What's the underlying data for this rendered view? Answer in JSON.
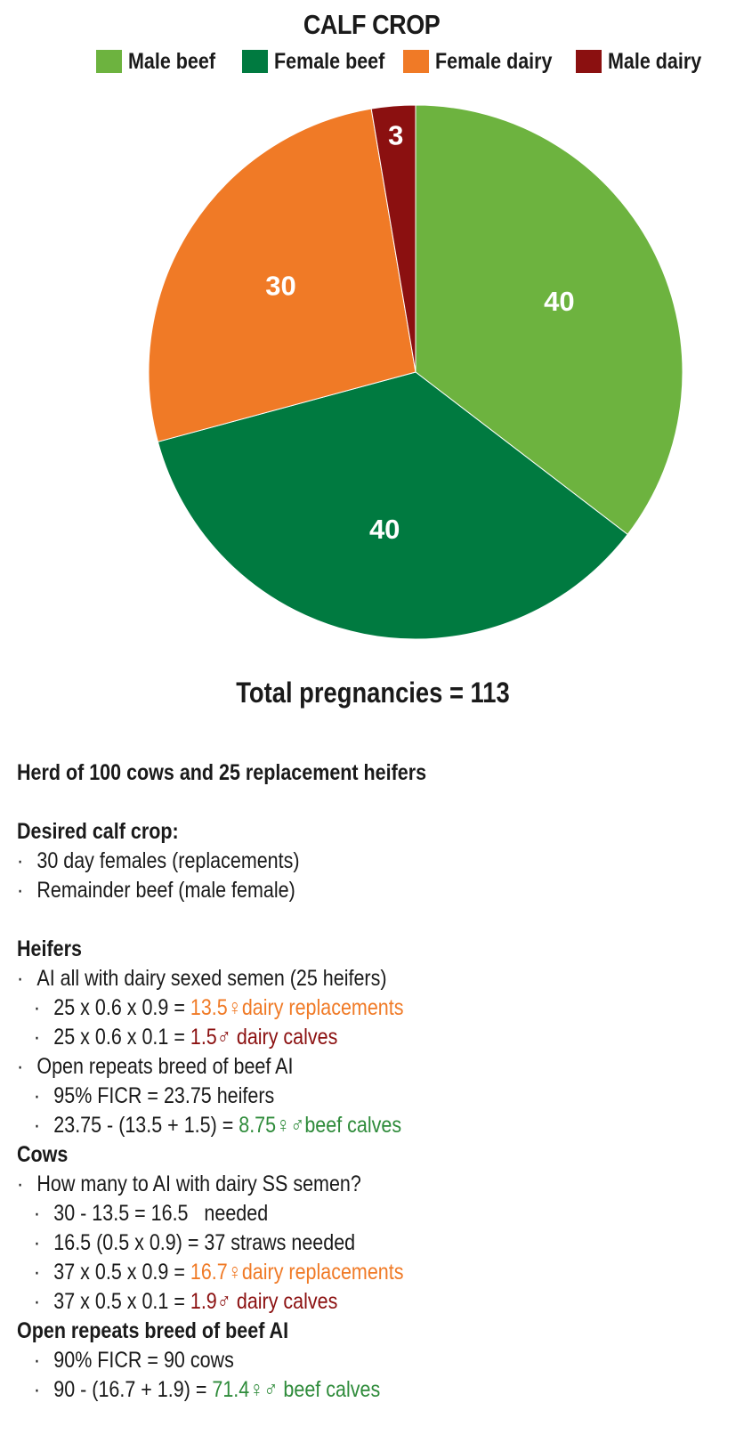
{
  "chart_data": {
    "type": "pie",
    "title": "CALF CROP",
    "series": [
      {
        "name": "Male beef",
        "value": 40,
        "color": "#6db33f"
      },
      {
        "name": "Female beef",
        "value": 40,
        "color": "#007a40"
      },
      {
        "name": "Female dairy",
        "value": 30,
        "color": "#f07a26"
      },
      {
        "name": "Male dairy",
        "value": 3,
        "color": "#8b1010"
      }
    ],
    "legend_position": "top",
    "caption": "Total pregnancies = 113"
  },
  "notes": {
    "herd": "Herd of 100 cows and 25 replacement heifers",
    "desired_heading": "Desired calf crop:",
    "desired_1": "30 day females (replacements)",
    "desired_2": "Remainder beef (male female)",
    "heifers_heading": "Heifers",
    "heifers_1": "AI all with dairy sexed semen (25 heifers)",
    "heifers_1a_pre": "25 x 0.6 x 0.9 = ",
    "heifers_1a_val": "13.5♀dairy replacements",
    "heifers_1b_pre": "25 x 0.6 x 0.1 = ",
    "heifers_1b_val": "1.5♂ dairy calves",
    "heifers_2": "Open repeats breed of beef AI",
    "heifers_2a": "95% FICR = 23.75 heifers",
    "heifers_2b_pre": "23.75 - (13.5 + 1.5) = ",
    "heifers_2b_val": "8.75♀♂beef calves",
    "cows_heading": "Cows",
    "cows_1": "How many to AI with dairy SS semen?",
    "cows_1a": "30 - 13.5 = 16.5   needed",
    "cows_1b": "16.5 (0.5 x 0.9) = 37 straws needed",
    "cows_1c_pre": "37 x 0.5 x 0.9 = ",
    "cows_1c_val": "16.7♀dairy replacements",
    "cows_1d_pre": "37 x 0.5 x 0.1 = ",
    "cows_1d_val": "1.9♂ dairy calves",
    "open_heading": "Open repeats breed of beef AI",
    "open_1": "90% FICR = 90 cows",
    "open_2_pre": "90 - (16.7 + 1.9) = ",
    "open_2_val": "71.4♀♂ beef calves",
    "bullet": "·"
  }
}
